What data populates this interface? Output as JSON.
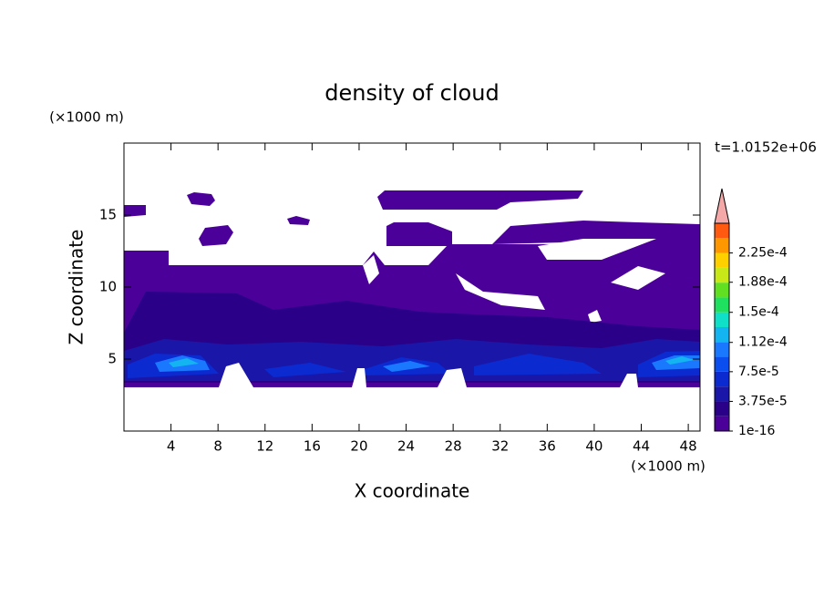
{
  "chart_data": {
    "type": "contour",
    "title": "density of cloud",
    "annotation": "t=1.0152e+06",
    "x_label": "X coordinate",
    "y_label": "Z coordinate",
    "x_unit": "(×1000 m)",
    "y_unit": "(×1000 m)",
    "xlim": [
      0,
      49
    ],
    "xticks": [
      4,
      8,
      12,
      16,
      20,
      24,
      28,
      32,
      36,
      40,
      44,
      48
    ],
    "ylim": [
      0,
      20
    ],
    "yticks": [
      5,
      10,
      15
    ],
    "clim": [
      0,
      0.0002625
    ],
    "colorbar_ticks": [
      {
        "value": 1e-16,
        "label": "1e-16"
      },
      {
        "value": 3.75e-05,
        "label": "3.75e-5"
      },
      {
        "value": 7.5e-05,
        "label": "7.5e-5"
      },
      {
        "value": 0.000112,
        "label": "1.12e-4"
      },
      {
        "value": 0.00015,
        "label": "1.5e-4"
      },
      {
        "value": 0.000188,
        "label": "1.88e-4"
      },
      {
        "value": 0.000225,
        "label": "2.25e-4"
      }
    ],
    "colors": [
      "#4b0099",
      "#2a0088",
      "#1a16a8",
      "#0b2ad0",
      "#0a4ef0",
      "#1a78ff",
      "#14b4f0",
      "#10e0c8",
      "#20e060",
      "#60e020",
      "#c8e818",
      "#ffd000",
      "#ff9800",
      "#ff5a10",
      "#e81818"
    ],
    "extend_color": "#f4a8a8"
  }
}
